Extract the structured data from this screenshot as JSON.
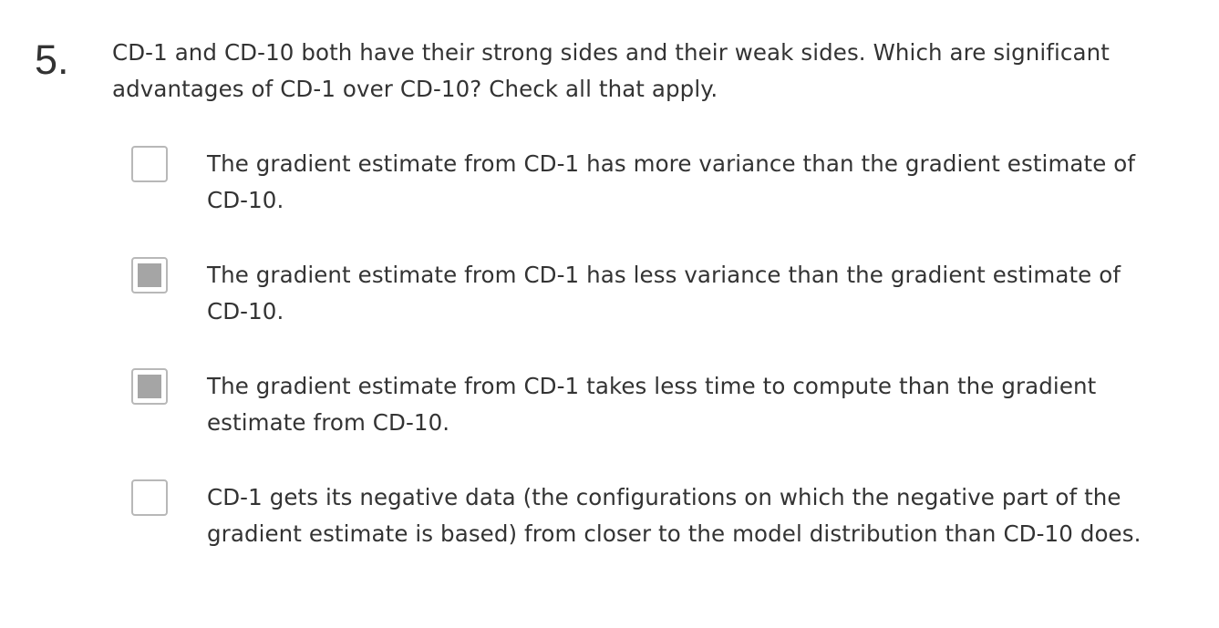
{
  "question": {
    "number": "5.",
    "prompt": "CD-1 and CD-10 both have their strong sides and their weak sides. Which are significant advantages of CD-1 over CD-10? Check all that apply."
  },
  "options": [
    {
      "text": "The gradient estimate from CD-1 has more variance than the gradient estimate of CD-10.",
      "checked": false
    },
    {
      "text": "The gradient estimate from CD-1 has less variance than the gradient estimate of CD-10.",
      "checked": true
    },
    {
      "text": "The gradient estimate from CD-1 takes less time to compute than the gradient estimate from CD-10.",
      "checked": true
    },
    {
      "text": "CD-1 gets its negative data (the configurations on which the negative part of the gradient estimate is based) from closer to the model distribution than CD-10 does.",
      "checked": false
    }
  ]
}
